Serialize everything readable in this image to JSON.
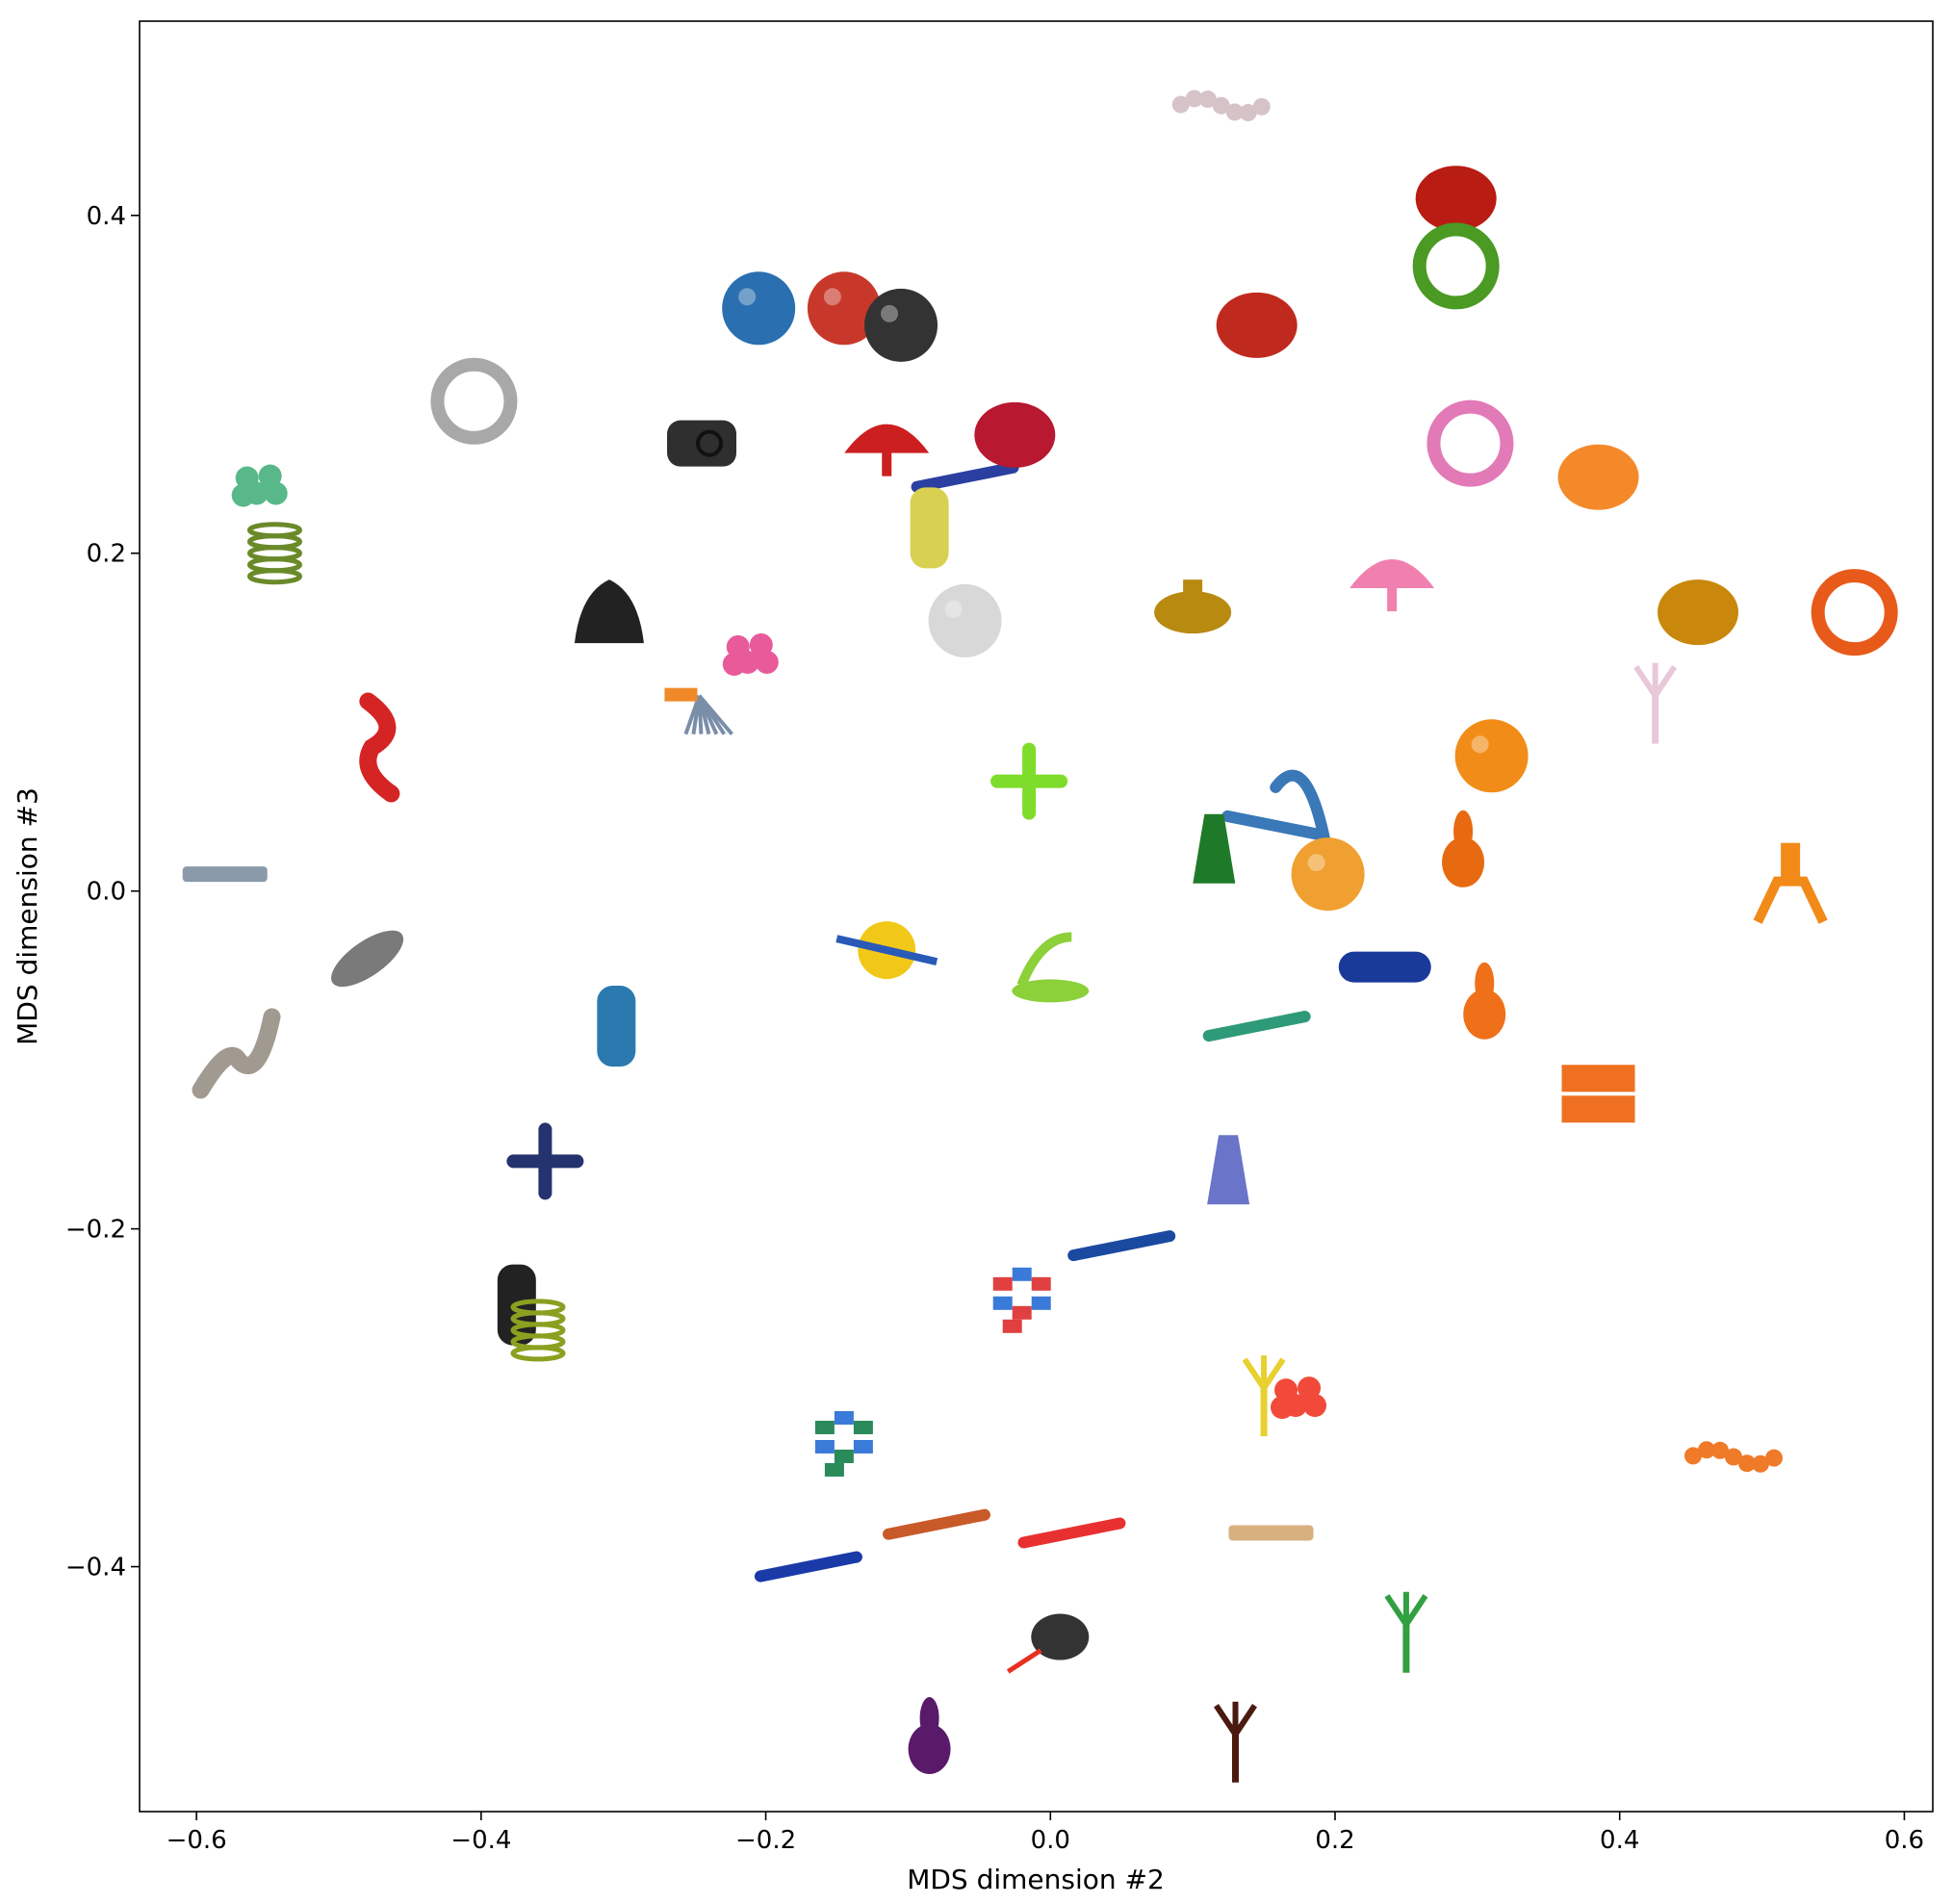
{
  "chart_data": {
    "type": "scatter",
    "title": "",
    "xlabel": "MDS dimension #2",
    "ylabel": "MDS dimension #3",
    "xlim": [
      -0.64,
      0.62
    ],
    "ylim": [
      -0.545,
      0.515
    ],
    "xticks": [
      -0.6,
      -0.4,
      -0.2,
      0.0,
      0.2,
      0.4,
      0.6
    ],
    "yticks": [
      -0.4,
      -0.2,
      0.0,
      0.2,
      0.4
    ],
    "xtick_labels": [
      "−0.6",
      "−0.4",
      "−0.2",
      "0.0",
      "0.2",
      "0.4",
      "0.6"
    ],
    "ytick_labels": [
      "−0.4",
      "−0.2",
      "0.0",
      "0.2",
      "0.4"
    ],
    "grid": false,
    "points": [
      {
        "x": 0.12,
        "y": 0.465,
        "color": "#d6c3c8",
        "shape": "chain"
      },
      {
        "x": 0.285,
        "y": 0.41,
        "color": "#b81c12",
        "shape": "blob"
      },
      {
        "x": 0.285,
        "y": 0.37,
        "color": "#4a9a24",
        "shape": "ring"
      },
      {
        "x": 0.145,
        "y": 0.335,
        "color": "#c02a1e",
        "shape": "blob"
      },
      {
        "x": -0.205,
        "y": 0.345,
        "color": "#2a6fb0",
        "shape": "ball"
      },
      {
        "x": -0.145,
        "y": 0.345,
        "color": "#c8382a",
        "shape": "ball"
      },
      {
        "x": -0.105,
        "y": 0.335,
        "color": "#333333",
        "shape": "ball"
      },
      {
        "x": -0.405,
        "y": 0.29,
        "color": "#a8a8a8",
        "shape": "ring"
      },
      {
        "x": -0.245,
        "y": 0.265,
        "color": "#2f2f2f",
        "shape": "cube"
      },
      {
        "x": -0.115,
        "y": 0.265,
        "color": "#cc2020",
        "shape": "fan"
      },
      {
        "x": -0.06,
        "y": 0.245,
        "color": "#2a3fa0",
        "shape": "rod"
      },
      {
        "x": -0.025,
        "y": 0.27,
        "color": "#b81830",
        "shape": "blob"
      },
      {
        "x": -0.085,
        "y": 0.215,
        "color": "#d8d050",
        "shape": "cylinder"
      },
      {
        "x": 0.295,
        "y": 0.265,
        "color": "#e27ab8",
        "shape": "ring"
      },
      {
        "x": 0.385,
        "y": 0.245,
        "color": "#f4892a",
        "shape": "blob"
      },
      {
        "x": -0.555,
        "y": 0.24,
        "color": "#58b88a",
        "shape": "cluster"
      },
      {
        "x": -0.545,
        "y": 0.2,
        "color": "#6a8a2a",
        "shape": "spring"
      },
      {
        "x": 0.24,
        "y": 0.185,
        "color": "#f080b0",
        "shape": "fan"
      },
      {
        "x": 0.1,
        "y": 0.165,
        "color": "#b88a10",
        "shape": "pot"
      },
      {
        "x": -0.31,
        "y": 0.165,
        "color": "#222222",
        "shape": "bell"
      },
      {
        "x": -0.06,
        "y": 0.16,
        "color": "#d8d8d8",
        "shape": "ball"
      },
      {
        "x": -0.21,
        "y": 0.14,
        "color": "#e85a9a",
        "shape": "cluster"
      },
      {
        "x": 0.455,
        "y": 0.165,
        "color": "#c9880c",
        "shape": "blob"
      },
      {
        "x": 0.565,
        "y": 0.165,
        "color": "#e85a1a",
        "shape": "ring"
      },
      {
        "x": -0.24,
        "y": 0.11,
        "color": "#7a8ea8",
        "shape": "mop"
      },
      {
        "x": 0.425,
        "y": 0.11,
        "color": "#e8c8d8",
        "shape": "fork"
      },
      {
        "x": -0.47,
        "y": 0.085,
        "color": "#d42424",
        "shape": "twist"
      },
      {
        "x": 0.31,
        "y": 0.08,
        "color": "#f28c18",
        "shape": "ball"
      },
      {
        "x": -0.015,
        "y": 0.065,
        "color": "#7edc2a",
        "shape": "cross"
      },
      {
        "x": 0.165,
        "y": 0.05,
        "color": "#3a78b8",
        "shape": "loop"
      },
      {
        "x": 0.115,
        "y": 0.025,
        "color": "#1e7a28",
        "shape": "cone"
      },
      {
        "x": 0.195,
        "y": 0.01,
        "color": "#f0a030",
        "shape": "ball"
      },
      {
        "x": 0.29,
        "y": 0.025,
        "color": "#e86a10",
        "shape": "pear"
      },
      {
        "x": 0.52,
        "y": 0.0,
        "color": "#f28a18",
        "shape": "claw"
      },
      {
        "x": -0.58,
        "y": 0.01,
        "color": "#8a9aa8",
        "shape": "strip"
      },
      {
        "x": -0.48,
        "y": -0.04,
        "color": "#7a7a7a",
        "shape": "disc"
      },
      {
        "x": -0.115,
        "y": -0.035,
        "color": "#f2c818",
        "shape": "wheel"
      },
      {
        "x": 0.0,
        "y": -0.05,
        "color": "#8cd03a",
        "shape": "shell"
      },
      {
        "x": 0.235,
        "y": -0.045,
        "color": "#1a3a9a",
        "shape": "capsule"
      },
      {
        "x": 0.305,
        "y": -0.065,
        "color": "#ef7018",
        "shape": "pear"
      },
      {
        "x": -0.305,
        "y": -0.08,
        "color": "#2a7ab0",
        "shape": "cylinder"
      },
      {
        "x": 0.145,
        "y": -0.08,
        "color": "#2e9a78",
        "shape": "rod"
      },
      {
        "x": -0.57,
        "y": -0.095,
        "color": "#a09a90",
        "shape": "wave"
      },
      {
        "x": 0.385,
        "y": -0.12,
        "color": "#ef7020",
        "shape": "box"
      },
      {
        "x": -0.355,
        "y": -0.16,
        "color": "#24326e",
        "shape": "cross"
      },
      {
        "x": 0.125,
        "y": -0.165,
        "color": "#6a74c8",
        "shape": "cone"
      },
      {
        "x": 0.05,
        "y": -0.21,
        "color": "#1a4aa0",
        "shape": "rod"
      },
      {
        "x": -0.02,
        "y": -0.24,
        "color": "#e04040",
        "shape": "blocks"
      },
      {
        "x": -0.375,
        "y": -0.245,
        "color": "#222222",
        "shape": "cylinder"
      },
      {
        "x": -0.36,
        "y": -0.26,
        "color": "#8aa020",
        "shape": "spring"
      },
      {
        "x": 0.15,
        "y": -0.3,
        "color": "#e8d030",
        "shape": "fork"
      },
      {
        "x": 0.175,
        "y": -0.3,
        "color": "#f24a3a",
        "shape": "cluster"
      },
      {
        "x": -0.145,
        "y": -0.325,
        "color": "#2a8a5a",
        "shape": "blocks"
      },
      {
        "x": 0.48,
        "y": -0.335,
        "color": "#ef7a28",
        "shape": "chain"
      },
      {
        "x": -0.08,
        "y": -0.375,
        "color": "#c85a2a",
        "shape": "rod"
      },
      {
        "x": 0.015,
        "y": -0.38,
        "color": "#e83030",
        "shape": "rod"
      },
      {
        "x": 0.155,
        "y": -0.38,
        "color": "#d8b080",
        "shape": "strip"
      },
      {
        "x": -0.17,
        "y": -0.4,
        "color": "#1a3aa8",
        "shape": "rod"
      },
      {
        "x": 0.0,
        "y": -0.445,
        "color": "#333333",
        "shape": "bulb"
      },
      {
        "x": 0.25,
        "y": -0.44,
        "color": "#30a040",
        "shape": "fork"
      },
      {
        "x": -0.085,
        "y": -0.5,
        "color": "#5a1a6a",
        "shape": "pear"
      },
      {
        "x": 0.13,
        "y": -0.505,
        "color": "#4a1a10",
        "shape": "fork"
      }
    ]
  }
}
